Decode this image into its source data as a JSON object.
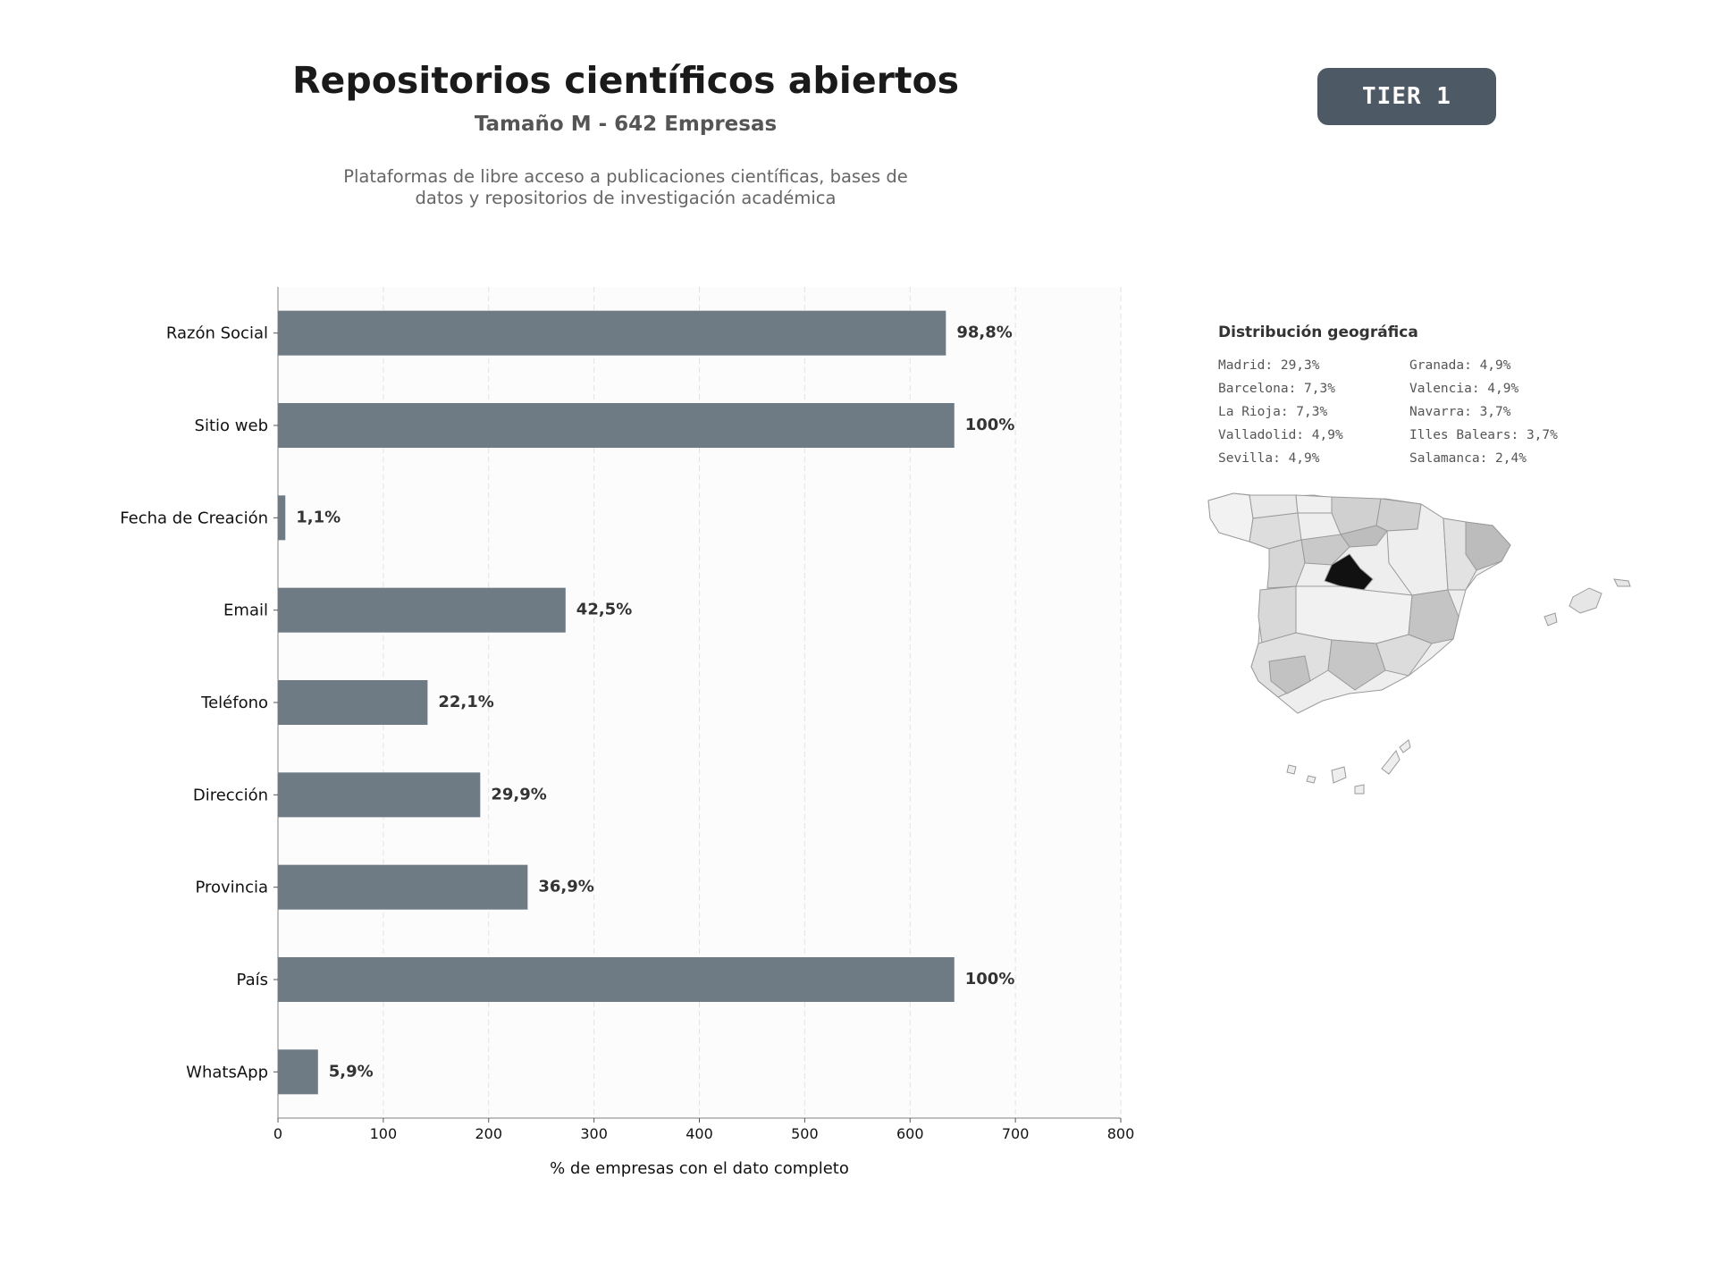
{
  "header": {
    "title": "Repositorios científicos abiertos",
    "subtitle": "Tamaño M - 642 Empresas",
    "description_line1": "Plataformas de libre acceso a publicaciones científicas, bases de",
    "description_line2": "datos y repositorios de investigación académica",
    "tier_badge": "TIER 1"
  },
  "colors": {
    "bar": "#6e7a84",
    "badge": "#4d5a66",
    "madrid": "#111111"
  },
  "chart_data": {
    "type": "bar",
    "orientation": "horizontal",
    "categories": [
      "Razón Social",
      "Sitio web",
      "Fecha de Creación",
      "Email",
      "Teléfono",
      "Dirección",
      "Provincia",
      "País",
      "WhatsApp"
    ],
    "values": [
      634,
      642,
      7,
      273,
      142,
      192,
      237,
      642,
      38
    ],
    "data_labels": [
      "98,8%",
      "100%",
      "1,1%",
      "42,5%",
      "22,1%",
      "29,9%",
      "36,9%",
      "100%",
      "5,9%"
    ],
    "xlabel": "% de empresas con el dato completo",
    "xlim": [
      0,
      800
    ],
    "xticks": [
      0,
      100,
      200,
      300,
      400,
      500,
      600,
      700,
      800
    ],
    "grid": "vertical dashed"
  },
  "geo": {
    "title": "Distribución geográfica",
    "items": [
      "Madrid: 29,3%",
      "Granada: 4,9%",
      "Barcelona: 7,3%",
      "Valencia: 4,9%",
      "La Rioja: 7,3%",
      "Navarra: 3,7%",
      "Valladolid: 4,9%",
      "Illes Balears: 3,7%",
      "Sevilla: 4,9%",
      "Salamanca: 2,4%"
    ]
  }
}
